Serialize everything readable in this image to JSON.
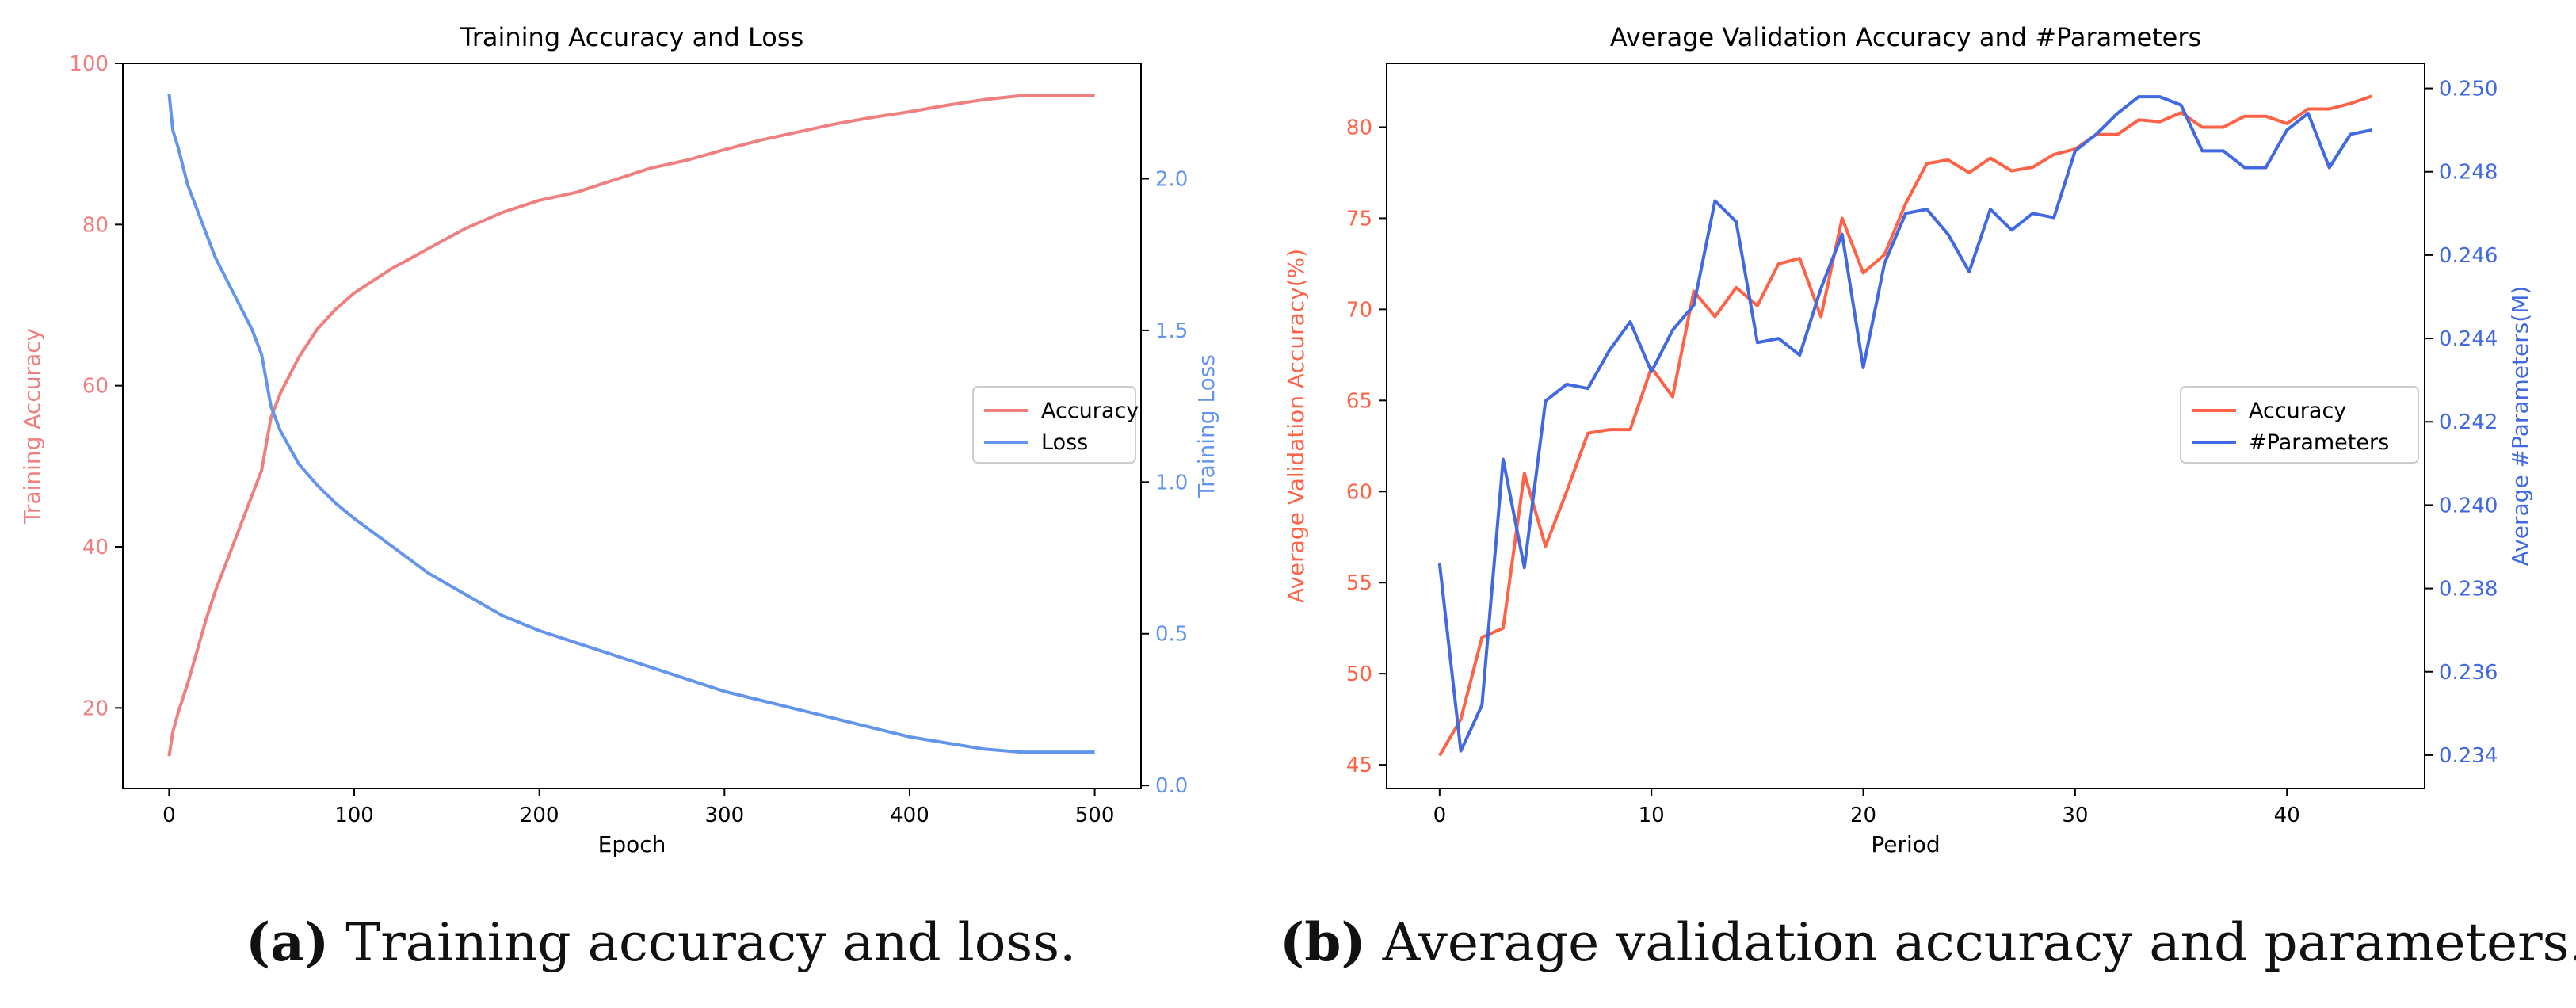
{
  "chart_data": [
    {
      "type": "line",
      "title": "Training Accuracy and Loss",
      "xlabel": "Epoch",
      "ylabel": "Training Accuracy",
      "y2label": "Training Loss",
      "xlim": [
        -25,
        525
      ],
      "ylim": [
        10,
        100
      ],
      "y2lim": [
        -0.01,
        2.38
      ],
      "xticks": [
        0,
        100,
        200,
        300,
        400,
        500
      ],
      "yticks": [
        20,
        40,
        60,
        80,
        100
      ],
      "y2ticks": [
        0.0,
        0.5,
        1.0,
        1.5,
        2.0
      ],
      "grid": false,
      "legend_position": "center-right",
      "colors": {
        "Accuracy": "#f08080",
        "Loss": "#6495ed"
      },
      "series": [
        {
          "name": "Accuracy",
          "axis": "left",
          "x": [
            0,
            2,
            5,
            10,
            15,
            20,
            25,
            30,
            35,
            40,
            45,
            50,
            55,
            60,
            70,
            80,
            90,
            100,
            120,
            140,
            160,
            180,
            200,
            220,
            240,
            260,
            280,
            300,
            320,
            340,
            360,
            380,
            400,
            420,
            440,
            460,
            480,
            500
          ],
          "values": [
            14,
            17,
            19.5,
            23,
            27,
            31,
            34.5,
            37.5,
            40.5,
            43.5,
            46.5,
            49.5,
            56,
            59,
            63.5,
            67,
            69.5,
            71.5,
            74.5,
            77,
            79.5,
            81.5,
            83,
            84,
            85.5,
            87,
            88,
            89.3,
            90.5,
            91.5,
            92.5,
            93.3,
            94,
            94.8,
            95.5,
            96,
            96,
            96
          ]
        },
        {
          "name": "Loss",
          "axis": "right",
          "x": [
            0,
            2,
            5,
            10,
            15,
            20,
            25,
            30,
            35,
            40,
            45,
            50,
            55,
            60,
            70,
            80,
            90,
            100,
            120,
            140,
            160,
            180,
            200,
            220,
            240,
            260,
            280,
            300,
            320,
            340,
            360,
            380,
            400,
            420,
            440,
            460,
            480,
            500
          ],
          "values": [
            2.28,
            2.16,
            2.1,
            1.98,
            1.9,
            1.82,
            1.74,
            1.68,
            1.62,
            1.56,
            1.5,
            1.42,
            1.25,
            1.17,
            1.06,
            0.99,
            0.93,
            0.88,
            0.79,
            0.7,
            0.63,
            0.56,
            0.51,
            0.47,
            0.43,
            0.39,
            0.35,
            0.31,
            0.28,
            0.25,
            0.22,
            0.19,
            0.16,
            0.14,
            0.12,
            0.11,
            0.11,
            0.11
          ]
        }
      ]
    },
    {
      "type": "line",
      "title": "Average Validation Accuracy and #Parameters",
      "xlabel": "Period",
      "ylabel": "Average Validation Accuracy(%)",
      "y2label": "Average #Parameters(M)",
      "xlim": [
        -2.5,
        46.5
      ],
      "ylim": [
        43.7,
        83.5
      ],
      "y2lim": [
        0.2332,
        0.2506
      ],
      "xticks": [
        0,
        10,
        20,
        30,
        40
      ],
      "yticks": [
        45,
        50,
        55,
        60,
        65,
        70,
        75,
        80
      ],
      "y2ticks": [
        0.234,
        0.236,
        0.238,
        0.24,
        0.242,
        0.244,
        0.246,
        0.248,
        0.25
      ],
      "y2tick_labels": [
        "0.234",
        "0.236",
        "0.238",
        "0.240",
        "0.242",
        "0.244",
        "0.246",
        "0.248",
        "0.250"
      ],
      "grid": false,
      "legend_position": "center-right",
      "colors": {
        "Accuracy": "#ff6347",
        "#Parameters": "#4169e1"
      },
      "x": [
        0,
        1,
        2,
        3,
        4,
        5,
        6,
        7,
        8,
        9,
        10,
        11,
        12,
        13,
        14,
        15,
        16,
        17,
        18,
        19,
        20,
        21,
        22,
        23,
        24,
        25,
        26,
        27,
        28,
        29,
        30,
        31,
        32,
        33,
        34,
        35,
        36,
        37,
        38,
        39,
        40,
        41,
        42,
        43,
        44
      ],
      "series": [
        {
          "name": "Accuracy",
          "axis": "left",
          "values": [
            45.5,
            47.5,
            52,
            52.5,
            61,
            57,
            60,
            63.2,
            63.4,
            63.4,
            66.8,
            65.2,
            71,
            69.6,
            71.2,
            70.2,
            72.5,
            72.8,
            69.6,
            75,
            72,
            73,
            75.8,
            78,
            78.2,
            77.5,
            78.3,
            77.6,
            77.8,
            78.5,
            78.8,
            79.6,
            79.6,
            80.4,
            80.3,
            80.8,
            80.0,
            80.0,
            80.6,
            80.6,
            80.2,
            81.0,
            81.0,
            81.3,
            81.7
          ]
        },
        {
          "name": "#Parameters",
          "axis": "right",
          "values": [
            0.2386,
            0.2341,
            0.2352,
            0.2411,
            0.2385,
            0.2425,
            0.2429,
            0.2428,
            0.2437,
            0.2444,
            0.2432,
            0.2442,
            0.2448,
            0.2473,
            0.2468,
            0.2439,
            0.244,
            0.2436,
            0.2452,
            0.2465,
            0.2433,
            0.2458,
            0.247,
            0.2471,
            0.2465,
            0.2456,
            0.2471,
            0.2466,
            0.247,
            0.2469,
            0.2485,
            0.2489,
            0.2494,
            0.2498,
            0.2498,
            0.2496,
            0.2485,
            0.2485,
            0.2481,
            0.2481,
            0.249,
            0.2494,
            0.2481,
            0.2489,
            0.249
          ]
        }
      ]
    }
  ],
  "captions": [
    {
      "letter": "(a)",
      "text": " Training accuracy and loss."
    },
    {
      "letter": "(b)",
      "text": " Average validation accuracy and parameters."
    }
  ]
}
